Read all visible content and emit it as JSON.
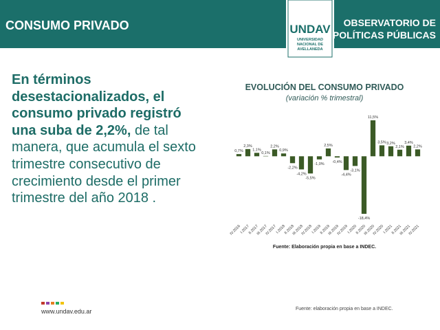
{
  "header": {
    "title": "CONSUMO PRIVADO",
    "logo": {
      "name": "UNDAV",
      "lines": [
        "UNIVERSIDAD",
        "NACIONAL DE",
        "AVELLANEDA"
      ]
    },
    "org": [
      "OBSERVATORIO DE",
      "POLÍTICAS PÚBLICAS"
    ]
  },
  "body": {
    "bold": "En términos desestacionalizados, el consumo privado registró una suba de 2,2%,",
    "regular": " de tal manera, que acumula el sexto trimestre consecutivo de crecimiento desde el primer trimestre del año 2018 ."
  },
  "chart_data": {
    "type": "bar",
    "title": "EVOLUCIÓN DEL CONSUMO PRIVADO",
    "subtitle": "(variación % trimestral)",
    "source": "Fuente: Elaboración propia en base a INDEC.",
    "color": "#3b5a26",
    "categories": [
      "IV.2016",
      "I.2017",
      "II.2017",
      "III.2017",
      "IV.2017",
      "I.2018",
      "II.2018",
      "III.2018",
      "IV.2018",
      "I.2019",
      "II.2019",
      "III.2019",
      "IV.2019",
      "I.2020",
      "II.2020",
      "III.2020",
      "IV.2020",
      "I.2021",
      "II.2021",
      "III.2021",
      "IV.2021"
    ],
    "values": [
      0.7,
      2.3,
      1.1,
      0.1,
      2.2,
      0.9,
      -2.2,
      -4.2,
      -5.5,
      -1.0,
      2.5,
      -0.4,
      -4.4,
      -3.1,
      -18.4,
      11.5,
      3.5,
      3.2,
      2.1,
      3.4,
      2.2
    ],
    "value_labels": [
      "0,7%",
      "2,3%",
      "1,1%",
      "0,1%",
      "2,2%",
      "0,9%",
      "-2,2%",
      "-4,2%",
      "-5,5%",
      "-1,0%",
      "2,5%",
      "-0,4%",
      "-4,4%",
      "-3,1%",
      "-18,4%",
      "11,5%",
      "3,5%",
      "3,2%",
      "2,1%",
      "3,4%",
      "2,2%"
    ]
  },
  "footer": {
    "url": "www.undav.edu.ar",
    "source": "Fuente: elaboración propia en base a INDEC."
  }
}
